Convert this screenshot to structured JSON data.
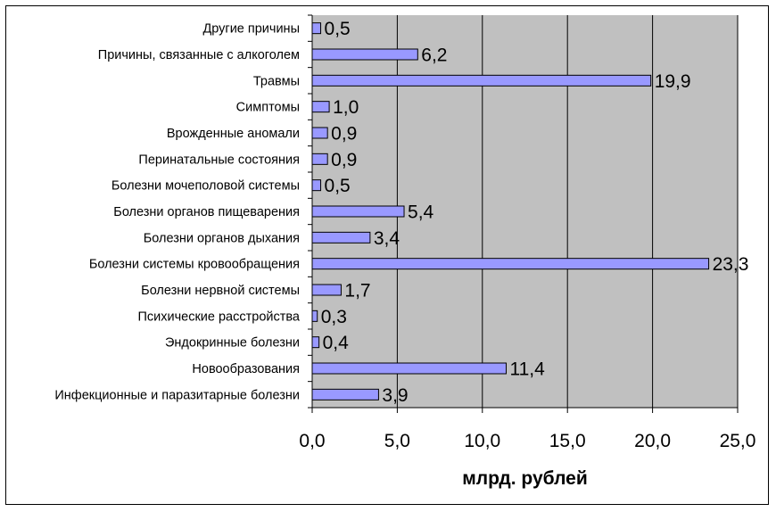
{
  "chart_data": {
    "type": "bar",
    "orientation": "horizontal",
    "categories": [
      "Другие причины",
      "Причины, связанные с алкоголем",
      "Травмы",
      "Симптомы",
      "Врожденные аномали",
      "Перинатальные состояния",
      "Болезни мочеполовой системы",
      "Болезни органов пищеварения",
      "Болезни органов дыхания",
      "Болезни системы кровообращения",
      "Болезни нервной системы",
      "Психические расстройства",
      "Эндокринные болезни",
      "Новообразования",
      "Инфекционные и паразитарные болезни"
    ],
    "values": [
      0.5,
      6.2,
      19.9,
      1.0,
      0.9,
      0.9,
      0.5,
      5.4,
      3.4,
      23.3,
      1.7,
      0.3,
      0.4,
      11.4,
      3.9
    ],
    "value_labels": [
      "0,5",
      "6,2",
      "19,9",
      "1,0",
      "0,9",
      "0,9",
      "0,5",
      "5,4",
      "3,4",
      "23,3",
      "1,7",
      "0,3",
      "0,4",
      "11,4",
      "3,9"
    ],
    "xlim": [
      0,
      25
    ],
    "xticks": [
      0,
      5,
      10,
      15,
      20,
      25
    ],
    "xtick_labels": [
      "0,0",
      "5,0",
      "10,0",
      "15,0",
      "20,0",
      "25,0"
    ],
    "xlabel": "млрд. рублей",
    "title": "",
    "ylabel": "",
    "grid": "vertical",
    "legend": "none",
    "colors": {
      "bar_fill": "#9999ff",
      "bar_stroke": "#000000",
      "plot_background": "#c0c0c0",
      "gridline": "#000000"
    }
  }
}
